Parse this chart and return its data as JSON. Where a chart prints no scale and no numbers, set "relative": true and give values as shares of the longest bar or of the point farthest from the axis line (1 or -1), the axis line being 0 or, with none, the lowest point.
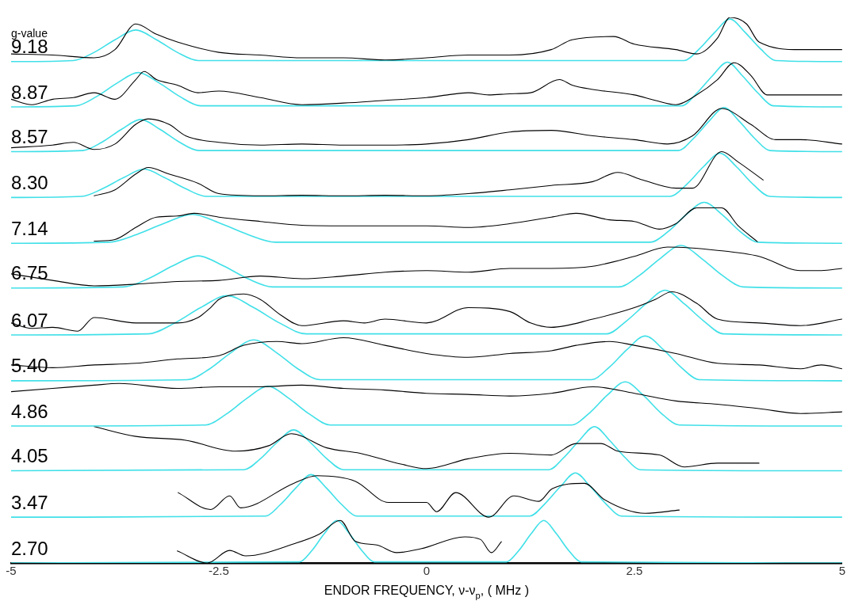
{
  "chart_data": {
    "type": "line",
    "relative": true,
    "xlabel": "ENDOR FREQUENCY, ν-ν$_{p}$, ( MHz )",
    "annotations": [
      "g-value"
    ],
    "xlim": [
      -5,
      5
    ],
    "xticks": [
      -5,
      -2.5,
      0,
      2.5,
      5
    ],
    "grid": false,
    "legend": false,
    "marker": "none",
    "line_style": "solid",
    "series": [
      {
        "color": "#000000",
        "x": [
          -5,
          -4.5,
          -4,
          -3.75,
          -3.5,
          -3.25,
          -3,
          -2.5,
          -2,
          -1.5,
          -1,
          -0.5,
          0,
          0.5,
          1,
          1.5,
          1.75,
          2.25,
          2.5,
          3,
          3.25,
          3.5,
          3.65,
          3.85,
          4,
          4.5,
          5
        ],
        "values": [
          0.933,
          0.931,
          0.926,
          0.941,
          0.988,
          0.969,
          0.955,
          0.936,
          0.931,
          0.926,
          0.926,
          0.922,
          0.926,
          0.931,
          0.931,
          0.941,
          0.959,
          0.965,
          0.951,
          0.941,
          0.933,
          0.962,
          1,
          0.988,
          0.955,
          0.941,
          0.941
        ]
      },
      {
        "name": "9.18",
        "color": "#40e0e8",
        "x": [
          -5,
          -4.25,
          -4,
          -3.75,
          -3.5,
          -3.25,
          -3,
          -2.75,
          3.1,
          3.28,
          3.47,
          3.65,
          3.83,
          4.02,
          4.2,
          5
        ],
        "values": [
          0.919,
          0.921,
          0.936,
          0.959,
          0.977,
          0.959,
          0.936,
          0.921,
          0.921,
          0.942,
          0.973,
          0.997,
          0.973,
          0.942,
          0.921,
          0.919
        ]
      },
      {
        "color": "#000000",
        "x": [
          -5,
          -4.75,
          -4.5,
          -4.25,
          -4,
          -3.75,
          -3.5,
          -3.4,
          -3.25,
          -3,
          -2.75,
          -2.5,
          -2,
          -1.5,
          -1,
          -0.5,
          0,
          0.25,
          0.5,
          0.75,
          1,
          1.25,
          1.6,
          1.75,
          2,
          2.5,
          2.75,
          3,
          3.25,
          3.5,
          3.7,
          3.9,
          4.1,
          4.5,
          5
        ],
        "values": [
          0.85,
          0.84,
          0.85,
          0.853,
          0.862,
          0.85,
          0.886,
          0.901,
          0.886,
          0.876,
          0.862,
          0.865,
          0.853,
          0.84,
          0.843,
          0.848,
          0.853,
          0.858,
          0.862,
          0.858,
          0.86,
          0.862,
          0.886,
          0.876,
          0.868,
          0.858,
          0.848,
          0.84,
          0.858,
          0.886,
          0.917,
          0.894,
          0.858,
          0.858,
          0.858
        ]
      },
      {
        "name": "8.87",
        "color": "#40e0e8",
        "x": [
          -5,
          -4.22,
          -3.97,
          -3.72,
          -3.47,
          -3.22,
          -2.97,
          -2.72,
          3.07,
          3.25,
          3.44,
          3.62,
          3.8,
          3.99,
          4.17,
          5
        ],
        "values": [
          0.836,
          0.838,
          0.855,
          0.88,
          0.899,
          0.88,
          0.855,
          0.838,
          0.838,
          0.861,
          0.893,
          0.918,
          0.893,
          0.861,
          0.838,
          0.836
        ]
      },
      {
        "color": "#000000",
        "x": [
          -5,
          -4.5,
          -4.25,
          -4,
          -3.75,
          -3.5,
          -3.35,
          -3.1,
          -2.9,
          -2.5,
          -2,
          -1.5,
          -1,
          -0.5,
          0,
          0.5,
          1,
          1.5,
          2,
          2.5,
          2.9,
          3.2,
          3.55,
          3.9,
          4.2,
          4.5,
          5
        ],
        "values": [
          0.761,
          0.766,
          0.771,
          0.758,
          0.768,
          0.804,
          0.814,
          0.804,
          0.783,
          0.771,
          0.766,
          0.768,
          0.766,
          0.766,
          0.768,
          0.776,
          0.79,
          0.793,
          0.783,
          0.776,
          0.768,
          0.783,
          0.833,
          0.804,
          0.776,
          0.776,
          0.768
        ]
      },
      {
        "name": "8.57",
        "color": "#40e0e8",
        "x": [
          -5,
          -4.14,
          -3.91,
          -3.67,
          -3.44,
          -3.21,
          -2.97,
          -2.74,
          3.03,
          3.21,
          3.4,
          3.58,
          3.76,
          3.95,
          4.13,
          5
        ],
        "values": [
          0.754,
          0.756,
          0.771,
          0.795,
          0.813,
          0.795,
          0.771,
          0.756,
          0.756,
          0.778,
          0.81,
          0.835,
          0.81,
          0.778,
          0.756,
          0.754
        ]
      },
      {
        "color": "#000000",
        "x": [
          -4,
          -3.75,
          -3.5,
          -3.35,
          -3.1,
          -2.75,
          -2.5,
          -2,
          -1.5,
          -1,
          -0.5,
          0,
          0.5,
          1,
          1.5,
          2,
          2.3,
          2.6,
          3,
          3.2,
          3.55,
          3.75,
          4.05
        ],
        "values": [
          0.673,
          0.684,
          0.713,
          0.725,
          0.713,
          0.696,
          0.677,
          0.673,
          0.674,
          0.673,
          0.674,
          0.673,
          0.677,
          0.684,
          0.692,
          0.699,
          0.716,
          0.702,
          0.687,
          0.687,
          0.754,
          0.735,
          0.702
        ]
      },
      {
        "name": "8.30",
        "color": "#40e0e8",
        "x": [
          -5,
          -4.15,
          -3.9,
          -3.65,
          -3.4,
          -3.15,
          -2.9,
          -2.65,
          2.93,
          3.13,
          3.33,
          3.53,
          3.73,
          3.93,
          4.13,
          5
        ],
        "values": [
          0.67,
          0.672,
          0.686,
          0.706,
          0.722,
          0.706,
          0.686,
          0.672,
          0.672,
          0.694,
          0.726,
          0.751,
          0.726,
          0.694,
          0.672,
          0.67
        ]
      },
      {
        "color": "#000000",
        "x": [
          -4,
          -3.75,
          -3.5,
          -3.25,
          -3,
          -2.8,
          -2.5,
          -2,
          -1.5,
          -1,
          -0.5,
          0,
          0.5,
          1,
          1.5,
          1.8,
          2.2,
          2.5,
          2.8,
          3,
          3.25,
          3.55,
          3.75,
          3.98
        ],
        "values": [
          0.59,
          0.593,
          0.615,
          0.634,
          0.636,
          0.641,
          0.634,
          0.626,
          0.619,
          0.618,
          0.618,
          0.618,
          0.615,
          0.622,
          0.634,
          0.641,
          0.629,
          0.626,
          0.612,
          0.622,
          0.651,
          0.651,
          0.618,
          0.589
        ]
      },
      {
        "name": "7.14",
        "color": "#40e0e8",
        "x": [
          -5,
          -3.82,
          -3.49,
          -3.15,
          -2.82,
          -2.49,
          -2.15,
          -1.82,
          2.69,
          2.91,
          3.12,
          3.34,
          3.56,
          3.77,
          3.99,
          5
        ],
        "values": [
          0.586,
          0.588,
          0.602,
          0.623,
          0.639,
          0.623,
          0.602,
          0.588,
          0.588,
          0.608,
          0.638,
          0.661,
          0.638,
          0.608,
          0.588,
          0.586
        ]
      },
      {
        "color": "#000000",
        "x": [
          -5,
          -4.5,
          -4,
          -3.5,
          -3,
          -2.5,
          -2,
          -1.5,
          -1,
          -0.5,
          0,
          0.5,
          1,
          1.5,
          2,
          2.5,
          2.9,
          3.5,
          4,
          4.5,
          4.75,
          5
        ],
        "values": [
          0.53,
          0.518,
          0.508,
          0.511,
          0.516,
          0.518,
          0.526,
          0.521,
          0.526,
          0.533,
          0.536,
          0.533,
          0.54,
          0.54,
          0.544,
          0.562,
          0.579,
          0.573,
          0.562,
          0.536,
          0.536,
          0.54
        ]
      },
      {
        "name": "6.75",
        "color": "#40e0e8",
        "x": [
          -5,
          -3.65,
          -3.35,
          -3.05,
          -2.75,
          -2.45,
          -2.15,
          -1.85,
          2.31,
          2.56,
          2.81,
          3.06,
          3.31,
          3.56,
          3.81,
          5
        ],
        "values": [
          0.504,
          0.506,
          0.521,
          0.545,
          0.563,
          0.545,
          0.521,
          0.506,
          0.506,
          0.527,
          0.558,
          0.582,
          0.558,
          0.527,
          0.506,
          0.504
        ]
      },
      {
        "color": "#000000",
        "x": [
          -5,
          -4.75,
          -4.5,
          -4.2,
          -4,
          -3.5,
          -3,
          -2.75,
          -2.6,
          -2.5,
          -2.2,
          -2,
          -1.75,
          -1.5,
          -1,
          -0.75,
          -0.5,
          0,
          0.5,
          1,
          1.25,
          1.5,
          2,
          2.5,
          2.75,
          2.95,
          3.25,
          3.5,
          4,
          4.5,
          5
        ],
        "values": [
          0.44,
          0.43,
          0.432,
          0.425,
          0.45,
          0.44,
          0.44,
          0.45,
          0.468,
          0.483,
          0.493,
          0.483,
          0.454,
          0.435,
          0.444,
          0.44,
          0.447,
          0.44,
          0.468,
          0.461,
          0.44,
          0.432,
          0.447,
          0.468,
          0.483,
          0.497,
          0.476,
          0.447,
          0.44,
          0.435,
          0.447
        ]
      },
      {
        "name": "6.07",
        "color": "#40e0e8",
        "x": [
          -5,
          -3.35,
          -3.03,
          -2.72,
          -2.4,
          -2.08,
          -1.77,
          -1.45,
          2.17,
          2.4,
          2.64,
          2.87,
          3.1,
          3.34,
          3.57,
          5
        ],
        "values": [
          0.418,
          0.42,
          0.44,
          0.468,
          0.49,
          0.468,
          0.44,
          0.42,
          0.42,
          0.443,
          0.475,
          0.5,
          0.475,
          0.443,
          0.42,
          0.418
        ]
      },
      {
        "color": "#000000",
        "x": [
          -5,
          -4.5,
          -4,
          -3.5,
          -3,
          -2.5,
          -2.2,
          -1.8,
          -1.5,
          -1,
          -0.5,
          0,
          0.5,
          1,
          1.5,
          1.8,
          2.2,
          2.5,
          3,
          3.5,
          4,
          4.5,
          4.75,
          5
        ],
        "values": [
          0.363,
          0.358,
          0.363,
          0.366,
          0.374,
          0.38,
          0.399,
          0.406,
          0.402,
          0.413,
          0.399,
          0.384,
          0.377,
          0.384,
          0.389,
          0.399,
          0.406,
          0.399,
          0.384,
          0.366,
          0.363,
          0.356,
          0.363,
          0.356
        ]
      },
      {
        "name": "5.40",
        "color": "#40e0e8",
        "x": [
          -5,
          -2.88,
          -2.61,
          -2.35,
          -2.08,
          -1.81,
          -1.55,
          -1.28,
          1.98,
          2.2,
          2.41,
          2.63,
          2.85,
          3.06,
          3.28,
          5
        ],
        "values": [
          0.334,
          0.336,
          0.356,
          0.386,
          0.409,
          0.386,
          0.356,
          0.336,
          0.336,
          0.359,
          0.391,
          0.416,
          0.391,
          0.359,
          0.336,
          0.334
        ]
      },
      {
        "color": "#000000",
        "x": [
          -5,
          -4.5,
          -4,
          -3.7,
          -3,
          -2.5,
          -2,
          -1.5,
          -1,
          -0.5,
          0,
          0.5,
          1,
          1.5,
          2,
          2.5,
          3,
          3.5,
          4,
          4.5,
          5
        ],
        "values": [
          0.314,
          0.32,
          0.326,
          0.329,
          0.32,
          0.323,
          0.323,
          0.326,
          0.32,
          0.317,
          0.311,
          0.309,
          0.306,
          0.311,
          0.323,
          0.311,
          0.297,
          0.291,
          0.283,
          0.274,
          0.277
        ]
      },
      {
        "name": "4.86",
        "color": "#40e0e8",
        "x": [
          -5,
          -2.66,
          -2.41,
          -2.16,
          -1.91,
          -1.66,
          -1.41,
          -1.16,
          1.74,
          1.96,
          2.17,
          2.39,
          2.61,
          2.82,
          3.04,
          5
        ],
        "values": [
          0.251,
          0.253,
          0.273,
          0.302,
          0.324,
          0.302,
          0.273,
          0.253,
          0.253,
          0.275,
          0.307,
          0.332,
          0.307,
          0.275,
          0.253,
          0.251
        ]
      },
      {
        "color": "#000000",
        "x": [
          -4,
          -3.5,
          -2.9,
          -2.3,
          -1.9,
          -1.63,
          -1.2,
          -0.8,
          -0.3,
          0,
          0.5,
          1,
          1.5,
          1.8,
          2.1,
          2.3,
          2.8,
          3.1,
          3.5,
          4
        ],
        "values": [
          0.25,
          0.232,
          0.225,
          0.205,
          0.215,
          0.237,
          0.211,
          0.201,
          0.181,
          0.173,
          0.191,
          0.201,
          0.198,
          0.219,
          0.219,
          0.205,
          0.198,
          0.176,
          0.183,
          0.183
        ]
      },
      {
        "name": "4.05",
        "color": "#40e0e8",
        "x": [
          -5,
          -2.2,
          -2,
          -1.8,
          -1.6,
          -1.4,
          -1.2,
          -1,
          1.47,
          1.65,
          1.84,
          2.02,
          2.2,
          2.39,
          2.57,
          5
        ],
        "values": [
          0.169,
          0.171,
          0.191,
          0.221,
          0.244,
          0.221,
          0.191,
          0.171,
          0.171,
          0.193,
          0.225,
          0.25,
          0.225,
          0.193,
          0.171,
          0.169
        ]
      },
      {
        "color": "#000000",
        "x": [
          -2.99,
          -2.6,
          -2.37,
          -2.24,
          -1.6,
          -1.32,
          -0.86,
          -0.46,
          0,
          0.12,
          0.35,
          0.75,
          1.05,
          1.35,
          1.51,
          1.9,
          2.14,
          2.63,
          3.04
        ],
        "values": [
          0.129,
          0.098,
          0.123,
          0.101,
          0.146,
          0.16,
          0.15,
          0.111,
          0.111,
          0.094,
          0.129,
          0.084,
          0.123,
          0.113,
          0.136,
          0.146,
          0.116,
          0.091,
          0.097
        ]
      },
      {
        "name": "3.47",
        "color": "#40e0e8",
        "x": [
          -5,
          -1.94,
          -1.76,
          -1.57,
          -1.39,
          -1.21,
          -1.02,
          -0.84,
          1.24,
          1.42,
          1.61,
          1.79,
          1.97,
          2.16,
          2.34,
          5
        ],
        "values": [
          0.084,
          0.086,
          0.107,
          0.138,
          0.162,
          0.138,
          0.107,
          0.086,
          0.086,
          0.108,
          0.14,
          0.165,
          0.14,
          0.108,
          0.086,
          0.084
        ]
      },
      {
        "color": "#000000",
        "x": [
          -3,
          -2.64,
          -2.37,
          -2.18,
          -1.58,
          -1.29,
          -1.04,
          -0.86,
          -0.6,
          -0.36,
          -0.07,
          0.46,
          0.65,
          0.78,
          0.9
        ],
        "values": [
          0.022,
          0,
          0.023,
          0.013,
          0.036,
          0.053,
          0.078,
          0.04,
          0.033,
          0.019,
          0.026,
          0.048,
          0.043,
          0.019,
          0.039
        ]
      },
      {
        "name": "2.70",
        "color": "#40e0e8",
        "x": [
          -5,
          -1.53,
          -1.38,
          -1.23,
          -1.08,
          -0.93,
          -0.78,
          -0.63,
          0.96,
          1.11,
          1.26,
          1.41,
          1.56,
          1.71,
          1.86,
          5
        ],
        "values": [
          0,
          0.002,
          0.023,
          0.054,
          0.078,
          0.054,
          0.023,
          0.002,
          0.002,
          0.023,
          0.054,
          0.078,
          0.054,
          0.023,
          0.002,
          0
        ]
      }
    ]
  }
}
